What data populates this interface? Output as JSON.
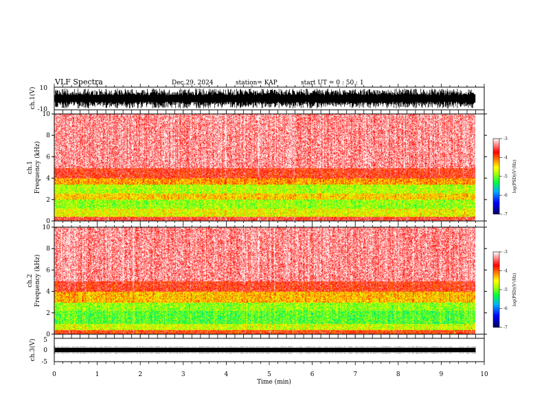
{
  "header": {
    "title": "VLF Spectra",
    "date": "Dec.29, 2024",
    "station": "station= KAP",
    "start": "start  UT =   0 : 50 : 1"
  },
  "chart_data": [
    {
      "type": "line",
      "name": "ch1-waveform",
      "ylabel": "ch.1(V)",
      "ylim": [
        -10,
        10
      ],
      "yticks": [
        "10",
        "-10"
      ],
      "xlim": [
        0,
        10
      ],
      "x_end_min": 9.8,
      "description_level": "full-scale saturated waveform, dense black",
      "color": "#000000"
    },
    {
      "type": "heatmap",
      "name": "ch1-spectrogram",
      "ylabel": "ch.1\nFrequency (kHz)",
      "ylim": [
        0,
        10
      ],
      "yticks": [
        "0",
        "2",
        "4",
        "6",
        "8",
        "10"
      ],
      "xlim": [
        0,
        10
      ],
      "x_end_min": 9.8,
      "bands": [
        {
          "from_khz": 0,
          "to_khz": 0.4,
          "level": -3.6
        },
        {
          "from_khz": 0.4,
          "to_khz": 1.2,
          "level": -4.6
        },
        {
          "from_khz": 1.2,
          "to_khz": 2.0,
          "level": -4.9
        },
        {
          "from_khz": 2.0,
          "to_khz": 2.6,
          "level": -4.4
        },
        {
          "from_khz": 2.6,
          "to_khz": 3.4,
          "level": -4.8
        },
        {
          "from_khz": 3.4,
          "to_khz": 4.0,
          "level": -4.2
        },
        {
          "from_khz": 4.0,
          "to_khz": 5.0,
          "level": -3.7
        },
        {
          "from_khz": 5.0,
          "to_khz": 10.0,
          "level": -3.3
        }
      ],
      "colorbar": {
        "min": -7,
        "max": -3,
        "ticks": [
          "-3",
          "-4",
          "-5",
          "-6",
          "-7"
        ],
        "label": "log(PSD)(V²/Hz)"
      }
    },
    {
      "type": "heatmap",
      "name": "ch2-spectrogram",
      "ylabel": "ch.2\nFrequency (kHz)",
      "ylim": [
        0,
        10
      ],
      "yticks": [
        "0",
        "2",
        "4",
        "6",
        "8",
        "10"
      ],
      "xlim": [
        0,
        10
      ],
      "x_end_min": 9.8,
      "bands": [
        {
          "from_khz": 0,
          "to_khz": 0.4,
          "level": -3.8
        },
        {
          "from_khz": 0.4,
          "to_khz": 1.0,
          "level": -4.7
        },
        {
          "from_khz": 1.0,
          "to_khz": 2.2,
          "level": -5.1
        },
        {
          "from_khz": 2.2,
          "to_khz": 3.0,
          "level": -4.9
        },
        {
          "from_khz": 3.0,
          "to_khz": 4.0,
          "level": -4.3
        },
        {
          "from_khz": 4.0,
          "to_khz": 5.0,
          "level": -3.7
        },
        {
          "from_khz": 5.0,
          "to_khz": 10.0,
          "level": -3.3
        }
      ],
      "colorbar": {
        "min": -7,
        "max": -3,
        "ticks": [
          "-3",
          "-4",
          "-5",
          "-6",
          "-7"
        ],
        "label": "log(PSD)(V²/Hz)"
      }
    },
    {
      "type": "line",
      "name": "ch3-waveform",
      "ylabel": "ch.3(V)",
      "ylim": [
        -5,
        5
      ],
      "yticks": [
        "5",
        "0",
        "-5"
      ],
      "xlim": [
        0,
        10
      ],
      "x_end_min": 9.8,
      "level_v": 0,
      "color": "#000000"
    }
  ],
  "xaxis": {
    "label": "Time (min)",
    "ticks": [
      "0",
      "1",
      "2",
      "3",
      "4",
      "5",
      "6",
      "7",
      "8",
      "9",
      "10"
    ]
  },
  "colors": {
    "colormap": [
      "#000080",
      "#0000ff",
      "#00c0ff",
      "#00ff40",
      "#a0ff00",
      "#ffff00",
      "#ff8000",
      "#ff0000",
      "#ffffff"
    ]
  }
}
